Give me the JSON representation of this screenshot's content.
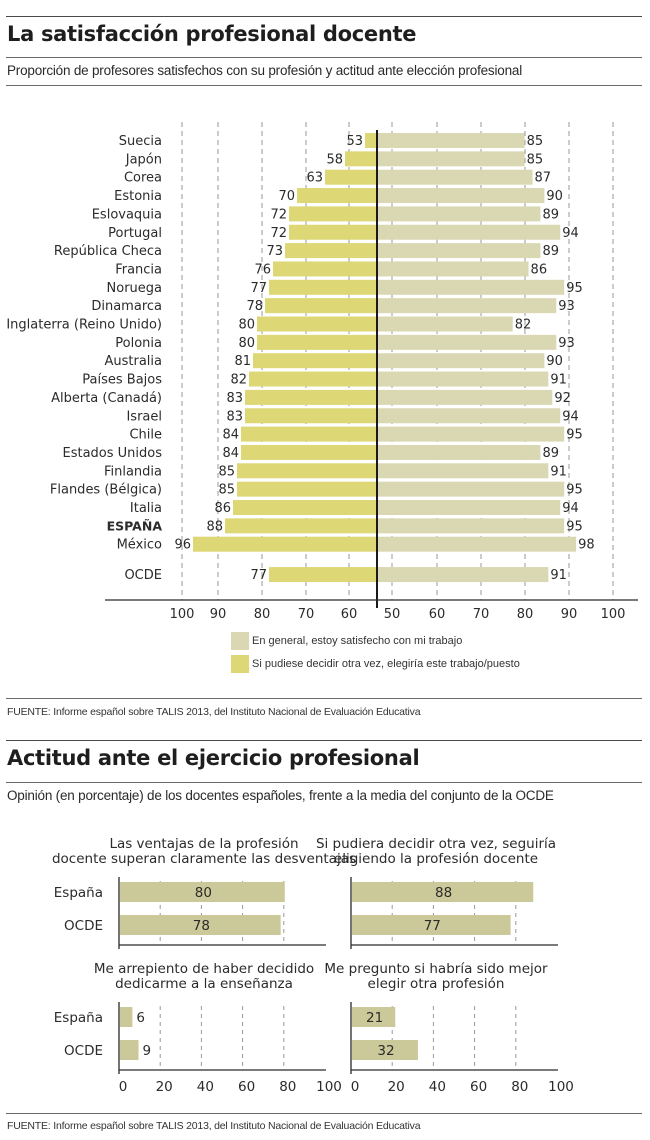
{
  "section1": {
    "title": "La satisfacción profesional docente",
    "subtitle": "Proporción de profesores satisfechos con su profesión y actitud ante elección profesional",
    "source": "FUENTE: Informe español sobre TALIS 2013, del Instituto Nacional de Evaluación Educativa",
    "legend": [
      {
        "label": "En general, estoy satisfecho con mi trabajo",
        "color": "#dad8b3"
      },
      {
        "label": "Si pudiese decidir otra vez, elegiría este trabajo/puesto",
        "color": "#ddd776"
      }
    ]
  },
  "section2": {
    "title": "Actitud ante el ejercicio profesional",
    "subtitle": "Opinión (en porcentaje) de los docentes españoles, frente a la media del conjunto de la OCDE",
    "source": "FUENTE: Informe español sobre TALIS 2013, del Instituto Nacional de Evaluación Educativa"
  },
  "chart_data": [
    {
      "type": "bar",
      "orientation": "horizontal-butterfly",
      "title": "Proporción de profesores satisfechos con su profesión y actitud ante elección profesional",
      "categories": [
        "Suecia",
        "Japón",
        "Corea",
        "Estonia",
        "Eslovaquia",
        "Portugal",
        "República Checa",
        "Francia",
        "Noruega",
        "Dinamarca",
        "Inglaterra (Reino Unido)",
        "Polonia",
        "Australia",
        "Países Bajos",
        "Alberta (Canadá)",
        "Israel",
        "Chile",
        "Estados Unidos",
        "Finlandia",
        "Flandes (Bélgica)",
        "Italia",
        "ESPAÑA",
        "México",
        "OCDE"
      ],
      "highlight": "ESPAÑA",
      "series": [
        {
          "name": "Si pudiese decidir otra vez, elegiría este trabajo/puesto",
          "side": "left",
          "color": "#ddd776",
          "values": [
            53,
            58,
            63,
            70,
            72,
            72,
            73,
            76,
            77,
            78,
            80,
            80,
            81,
            82,
            83,
            83,
            84,
            84,
            85,
            85,
            86,
            88,
            96,
            77
          ]
        },
        {
          "name": "En general, estoy satisfecho con mi trabajo",
          "side": "right",
          "color": "#dad8b3",
          "values": [
            85,
            85,
            87,
            90,
            89,
            94,
            89,
            86,
            95,
            93,
            82,
            93,
            90,
            91,
            92,
            94,
            95,
            89,
            91,
            95,
            94,
            95,
            98,
            91
          ]
        }
      ],
      "left_ticks": [
        100,
        90,
        80,
        70,
        60
      ],
      "right_ticks": [
        50,
        60,
        70,
        80,
        90,
        100
      ],
      "xlim": [
        50,
        100
      ],
      "grid": true
    },
    {
      "type": "bar",
      "title": "Las ventajas de la profesión docente superan claramente las desventajas",
      "categories": [
        "España",
        "OCDE"
      ],
      "values": [
        80,
        78
      ],
      "xlim": [
        0,
        100
      ],
      "color": "#cbc899"
    },
    {
      "type": "bar",
      "title": "Si pudiera decidir otra vez, seguiría eligiendo la profesión docente",
      "categories": [
        "España",
        "OCDE"
      ],
      "values": [
        88,
        77
      ],
      "xlim": [
        0,
        100
      ],
      "color": "#cbc899"
    },
    {
      "type": "bar",
      "title": "Me arrepiento de haber decidido dedicarme a la enseñanza",
      "categories": [
        "España",
        "OCDE"
      ],
      "values": [
        6,
        9
      ],
      "xlim": [
        0,
        100
      ],
      "ticks": [
        0,
        20,
        40,
        60,
        80,
        100
      ],
      "color": "#cbc899"
    },
    {
      "type": "bar",
      "title": "Me pregunto si habría sido mejor elegir otra profesión",
      "categories": [
        "España",
        "OCDE"
      ],
      "values": [
        21,
        32
      ],
      "xlim": [
        0,
        100
      ],
      "ticks": [
        0,
        20,
        40,
        60,
        80,
        100
      ],
      "color": "#cbc899"
    }
  ]
}
